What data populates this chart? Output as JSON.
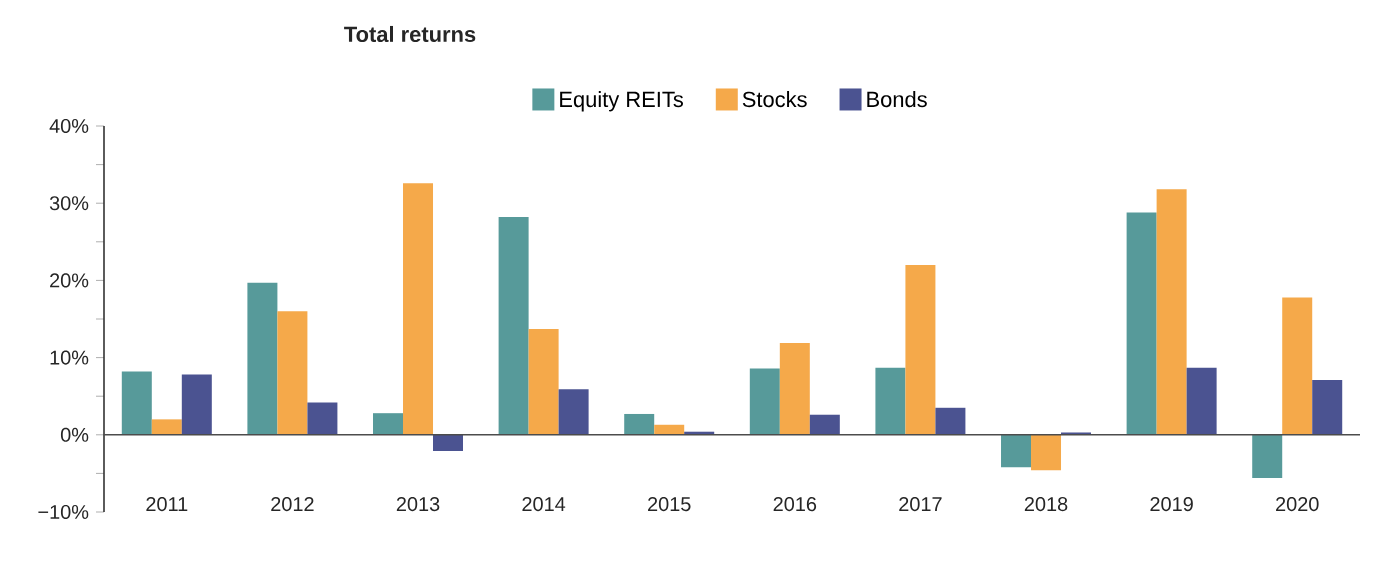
{
  "chart_data": {
    "type": "bar",
    "title": "Total returns",
    "categories": [
      "2011",
      "2012",
      "2013",
      "2014",
      "2015",
      "2016",
      "2017",
      "2018",
      "2019",
      "2020"
    ],
    "series": [
      {
        "name": "Equity REITs",
        "color": "#579a9a",
        "values": [
          8.2,
          19.7,
          2.8,
          28.2,
          2.7,
          8.6,
          8.7,
          -4.2,
          28.8,
          -5.6
        ]
      },
      {
        "name": "Stocks",
        "color": "#f5a94a",
        "values": [
          2.0,
          16.0,
          32.6,
          13.7,
          1.3,
          11.9,
          22.0,
          -4.6,
          31.8,
          17.8
        ]
      },
      {
        "name": "Bonds",
        "color": "#4b5391",
        "values": [
          7.8,
          4.2,
          -2.1,
          5.9,
          0.4,
          2.6,
          3.5,
          0.3,
          8.7,
          7.1
        ]
      }
    ],
    "ylim": [
      -10,
      40
    ],
    "yticks": [
      {
        "value": -10,
        "label": "−10%"
      },
      {
        "value": -5,
        "label": null
      },
      {
        "value": 0,
        "label": "0%"
      },
      {
        "value": 5,
        "label": null
      },
      {
        "value": 10,
        "label": "10%"
      },
      {
        "value": 15,
        "label": null
      },
      {
        "value": 20,
        "label": "20%"
      },
      {
        "value": 25,
        "label": null
      },
      {
        "value": 30,
        "label": "30%"
      },
      {
        "value": 35,
        "label": null
      },
      {
        "value": 40,
        "label": "40%"
      }
    ],
    "legend": "top"
  }
}
